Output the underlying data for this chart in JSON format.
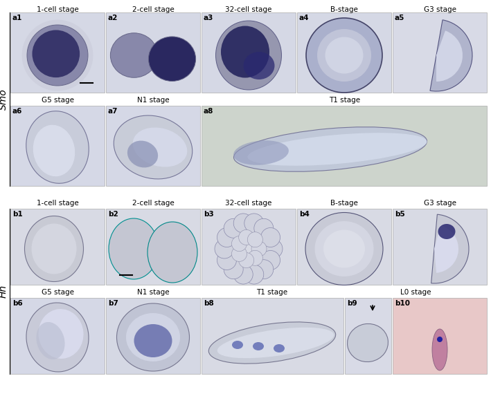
{
  "row_a_top_labels": [
    "1-cell stage",
    "2-cell stage",
    "32-cell stage",
    "B-stage",
    "G3 stage"
  ],
  "row_a_bottom_labels": [
    "G5 stage",
    "N1 stage",
    "T1 stage"
  ],
  "row_b_top_labels": [
    "1-cell stage",
    "2-cell stage",
    "32-cell stage",
    "B-stage",
    "G3 stage"
  ],
  "row_b_bottom_labels": [
    "G5 stage",
    "N1 stage",
    "T1 stage",
    "L0 stage"
  ],
  "panel_labels_a_top": [
    "a1",
    "a2",
    "a3",
    "a4",
    "a5"
  ],
  "panel_labels_a_bottom": [
    "a6",
    "a7",
    "a8"
  ],
  "panel_labels_b_top": [
    "b1",
    "b2",
    "b3",
    "b4",
    "b5"
  ],
  "panel_labels_b_bottom": [
    "b6",
    "b7",
    "b8",
    "b9",
    "b10"
  ],
  "smo_label": "Smo",
  "hh_label": "Hh",
  "panel_bg": "#e0e2e8",
  "panel_bg_light": "#dcdee4",
  "panel_bg_green": "#cdd4cc",
  "dark_blue": "#3a3870",
  "mid_blue": "#8890b8",
  "light_blue": "#b0b4cc",
  "pink_bg": "#e8d0d0",
  "header_fontsize": 7.5,
  "label_fontsize": 7.5,
  "smo_hh_fontsize": 10
}
